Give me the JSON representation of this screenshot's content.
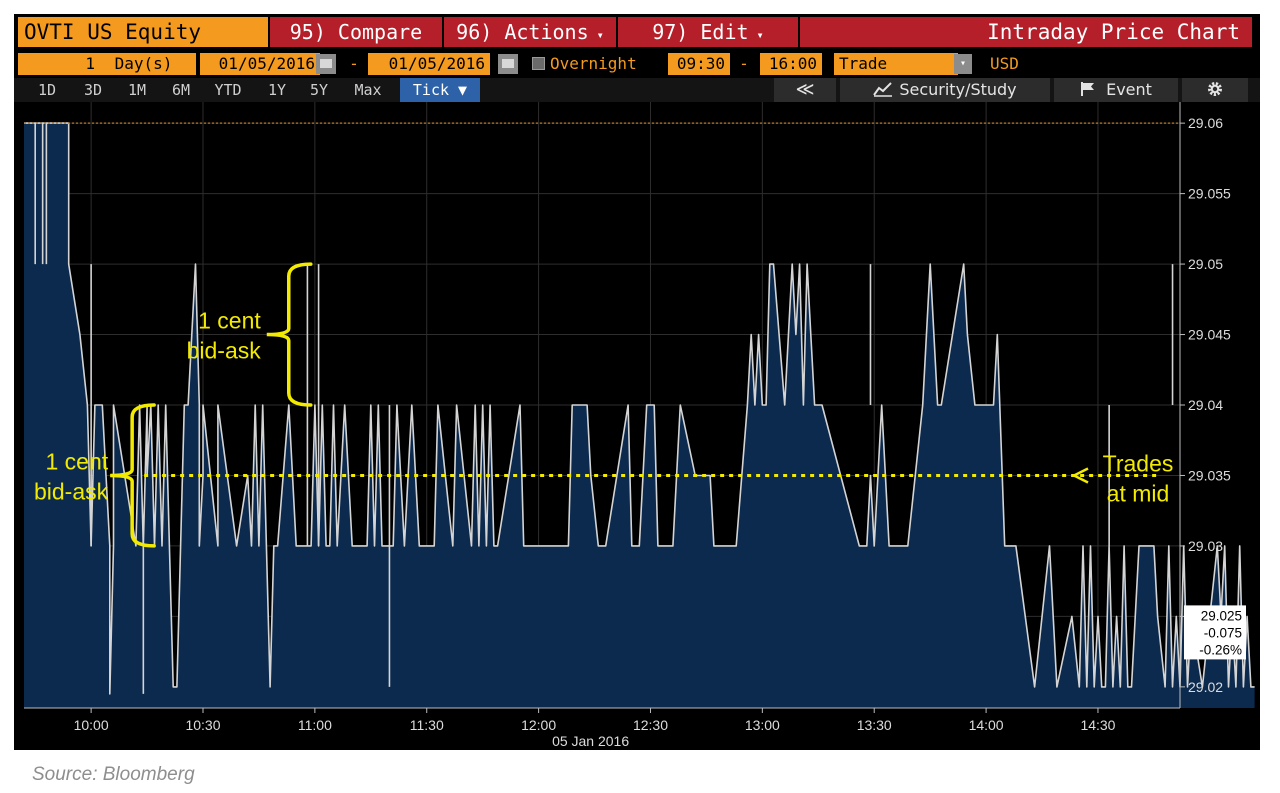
{
  "header": {
    "ticker": "OVTI US Equity",
    "compare_label": "95) Compare",
    "actions_label": "96) Actions",
    "edit_label": "97) Edit",
    "title": "Intraday Price Chart",
    "dropdown_arrow": "▾"
  },
  "params": {
    "period_count": "1",
    "period_unit": "Day(s)",
    "start_date": "01/05/2016",
    "date_sep": "-",
    "end_date": "01/05/2016",
    "overnight_label": "Overnight",
    "start_time": "09:30",
    "time_sep": "-",
    "end_time": "16:00",
    "event_type": "Trade",
    "currency": "USD"
  },
  "toolbar": {
    "ranges": [
      "1D",
      "3D",
      "1M",
      "6M",
      "YTD",
      "1Y",
      "5Y",
      "Max"
    ],
    "tick_label": "Tick ▼",
    "collapse_label": "≪",
    "security_study_label": "Security/Study",
    "event_label": "Event",
    "gear_icon": "gear-icon",
    "chart_icon": "chart-line-icon",
    "flag_icon": "flag-icon"
  },
  "chart_data": {
    "type": "area",
    "xlabel": "05 Jan 2016",
    "x_ticks": [
      "10:00",
      "10:30",
      "11:00",
      "11:30",
      "12:00",
      "12:30",
      "13:00",
      "13:30",
      "14:00",
      "14:30"
    ],
    "x_range": [
      "09:42",
      "14:52"
    ],
    "y_ticks": [
      "29.06",
      "29.055",
      "29.05",
      "29.045",
      "29.04",
      "29.035",
      "29.03",
      "29.025",
      "29.02"
    ],
    "ylim": [
      29.0185,
      29.0615
    ],
    "grid": true,
    "legend_position": "right",
    "last_price": "29.025",
    "net_change": "-0.075",
    "pct_change": "-0.26%",
    "reference_line": 29.06,
    "mid_line": 29.035,
    "series": [
      {
        "x_minutes": [
          582,
          594,
          594,
          597,
          599,
          600,
          601,
          603,
          604,
          605,
          605,
          606,
          606,
          612,
          613,
          614,
          615,
          615,
          616,
          617,
          618,
          619,
          620,
          621,
          622,
          623,
          624,
          625,
          626,
          627,
          628,
          629,
          629,
          630,
          630,
          634,
          634,
          639,
          642,
          643,
          644,
          645,
          646,
          647,
          648,
          649,
          650,
          653,
          655,
          659,
          660,
          661,
          662,
          663,
          664,
          665,
          666,
          668,
          670,
          674,
          675,
          676,
          677,
          678,
          681,
          682,
          684,
          686,
          688,
          692,
          693,
          697,
          698,
          702,
          703,
          704,
          705,
          706,
          707,
          708,
          709,
          715,
          716,
          717,
          720,
          728,
          729,
          733,
          734,
          736,
          738,
          744,
          745,
          747,
          748,
          749,
          751,
          752,
          756,
          758,
          762,
          766,
          767,
          773,
          776,
          777,
          778,
          779,
          780,
          781,
          782,
          783,
          786,
          788,
          789,
          790,
          791,
          792,
          793,
          794,
          796,
          806,
          808,
          809,
          810,
          812,
          813,
          814,
          819,
          823,
          825,
          827,
          828,
          834,
          835,
          837,
          840,
          842,
          843,
          845,
          848,
          853,
          857,
          859,
          863,
          865,
          866,
          867,
          868,
          869,
          870,
          871,
          872,
          873,
          874,
          875,
          876,
          877,
          878,
          879,
          881,
          883,
          885,
          886,
          888,
          889,
          890,
          891,
          892,
          893,
          894,
          895,
          898,
          902,
          903,
          904,
          905,
          906,
          907,
          908,
          909,
          910,
          911,
          912
        ],
        "values": [
          29.06,
          29.06,
          29.05,
          29.045,
          29.04,
          29.03,
          29.04,
          29.04,
          29.035,
          29.03,
          29.0195,
          29.03,
          29.04,
          29.03,
          29.04,
          29.03,
          29.04,
          29.035,
          29.04,
          29.03,
          29.04,
          29.03,
          29.04,
          29.03,
          29.02,
          29.02,
          29.03,
          29.04,
          29.04,
          29.045,
          29.05,
          29.04,
          29.03,
          29.035,
          29.04,
          29.03,
          29.04,
          29.03,
          29.035,
          29.03,
          29.04,
          29.03,
          29.04,
          29.03,
          29.02,
          29.03,
          29.03,
          29.04,
          29.03,
          29.03,
          29.04,
          29.03,
          29.04,
          29.03,
          29.03,
          29.04,
          29.03,
          29.04,
          29.03,
          29.03,
          29.04,
          29.03,
          29.04,
          29.03,
          29.03,
          29.04,
          29.03,
          29.04,
          29.03,
          29.03,
          29.04,
          29.03,
          29.04,
          29.03,
          29.04,
          29.03,
          29.04,
          29.03,
          29.04,
          29.03,
          29.03,
          29.04,
          29.03,
          29.03,
          29.03,
          29.03,
          29.04,
          29.04,
          29.035,
          29.03,
          29.03,
          29.04,
          29.03,
          29.03,
          29.035,
          29.04,
          29.04,
          29.03,
          29.03,
          29.04,
          29.035,
          29.035,
          29.03,
          29.03,
          29.04,
          29.045,
          29.04,
          29.045,
          29.04,
          29.04,
          29.05,
          29.05,
          29.04,
          29.05,
          29.045,
          29.05,
          29.04,
          29.05,
          29.045,
          29.04,
          29.04,
          29.03,
          29.03,
          29.035,
          29.03,
          29.04,
          29.035,
          29.03,
          29.03,
          29.04,
          29.05,
          29.04,
          29.04,
          29.05,
          29.045,
          29.04,
          29.04,
          29.04,
          29.045,
          29.03,
          29.03,
          29.02,
          29.03,
          29.02,
          29.025,
          29.02,
          29.03,
          29.02,
          29.03,
          29.02,
          29.025,
          29.02,
          29.02,
          29.03,
          29.02,
          29.025,
          29.02,
          29.03,
          29.02,
          29.02,
          29.03,
          29.03,
          29.03,
          29.025,
          29.02,
          29.03,
          29.02,
          29.025,
          29.02,
          29.03,
          29.02,
          29.025,
          29.02,
          29.03,
          29.025,
          29.03,
          29.02,
          29.025,
          29.02,
          29.03,
          29.02,
          29.025,
          29.02,
          29.02
        ],
        "spikes": [
          [
            585,
            29.06,
            29.05
          ],
          [
            587,
            29.06,
            29.05
          ],
          [
            588,
            29.06,
            29.05
          ],
          [
            600,
            29.05,
            29.03
          ],
          [
            614,
            29.03,
            29.0195
          ],
          [
            658,
            29.05,
            29.03
          ],
          [
            661,
            29.05,
            29.03
          ],
          [
            680,
            29.04,
            29.02
          ],
          [
            809,
            29.05,
            29.04
          ],
          [
            873,
            29.04,
            29.03
          ],
          [
            890,
            29.05,
            29.04
          ]
        ]
      }
    ],
    "annotations": [
      {
        "text_lines": [
          "1 cent",
          "bid-ask"
        ],
        "y_low": 29.04,
        "y_high": 29.05,
        "x_minutes": 653
      },
      {
        "text_lines": [
          "1 cent",
          "bid-ask"
        ],
        "y_low": 29.03,
        "y_high": 29.04,
        "x_minutes": 611
      },
      {
        "text_lines": [
          "Trades",
          "at mid"
        ],
        "y": 29.035
      }
    ]
  },
  "footer": {
    "source": "Source: Bloomberg"
  },
  "colors": {
    "orange": "#f39a1f",
    "red": "#b41f2a",
    "area_fill": "#0c2a4e",
    "area_line": "#d4d4d4",
    "annotation": "#f2ea00",
    "grid": "#2e2e2e"
  }
}
